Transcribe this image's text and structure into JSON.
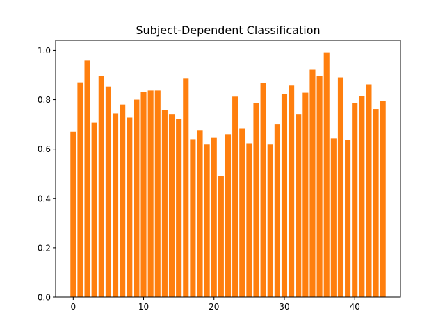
{
  "chart_data": {
    "type": "bar",
    "title": "Subject-Dependent Classification",
    "xlabel": "",
    "ylabel": "",
    "x": [
      0,
      1,
      2,
      3,
      4,
      5,
      6,
      7,
      8,
      9,
      10,
      11,
      12,
      13,
      14,
      15,
      16,
      17,
      18,
      19,
      20,
      21,
      22,
      23,
      24,
      25,
      26,
      27,
      28,
      29,
      30,
      31,
      32,
      33,
      34,
      35,
      36,
      37,
      38,
      39,
      40,
      41,
      42,
      43,
      44
    ],
    "values": [
      0.67,
      0.87,
      0.958,
      0.707,
      0.895,
      0.853,
      0.744,
      0.78,
      0.727,
      0.8,
      0.83,
      0.837,
      0.837,
      0.758,
      0.742,
      0.722,
      0.885,
      0.64,
      0.677,
      0.618,
      0.645,
      0.491,
      0.66,
      0.812,
      0.682,
      0.623,
      0.787,
      0.867,
      0.618,
      0.7,
      0.822,
      0.857,
      0.742,
      0.828,
      0.921,
      0.895,
      0.991,
      0.643,
      0.89,
      0.637,
      0.785,
      0.815,
      0.862,
      0.762,
      0.795
    ],
    "xlim": [
      -2.5,
      46.5
    ],
    "ylim": [
      0,
      1.0406
    ],
    "xticks": [
      0,
      10,
      20,
      30,
      40
    ],
    "yticks": [
      0.0,
      0.2,
      0.4,
      0.6,
      0.8,
      1.0
    ],
    "grid": false,
    "legend": "none",
    "bar_color": "#ff7f0e"
  }
}
